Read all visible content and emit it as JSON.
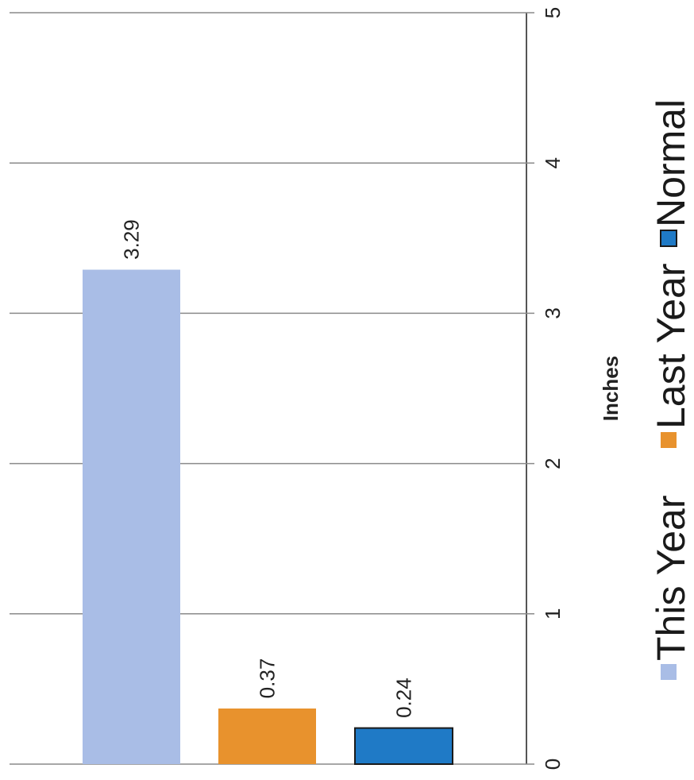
{
  "chart_data": {
    "type": "bar",
    "orientation": "horizontal",
    "categories": [
      "This Year",
      "Last Year",
      "Normal"
    ],
    "values": [
      3.29,
      0.37,
      0.24
    ],
    "data_labels": [
      "3.29",
      "0.37",
      "0.24"
    ],
    "colors": [
      "#a9bde6",
      "#e8922d",
      "#1f7ac6"
    ],
    "xlabel": "Inches",
    "xlim": [
      0,
      5
    ],
    "ticks": [
      "0",
      "1",
      "2",
      "3",
      "4",
      "5"
    ],
    "grid": true,
    "legend": {
      "position": "bottom",
      "entries": [
        {
          "label": "This Year",
          "color": "#a9bde6"
        },
        {
          "label": "Last Year",
          "color": "#e8922d"
        },
        {
          "label": "Normal",
          "color": "#1f7ac6"
        }
      ]
    }
  }
}
